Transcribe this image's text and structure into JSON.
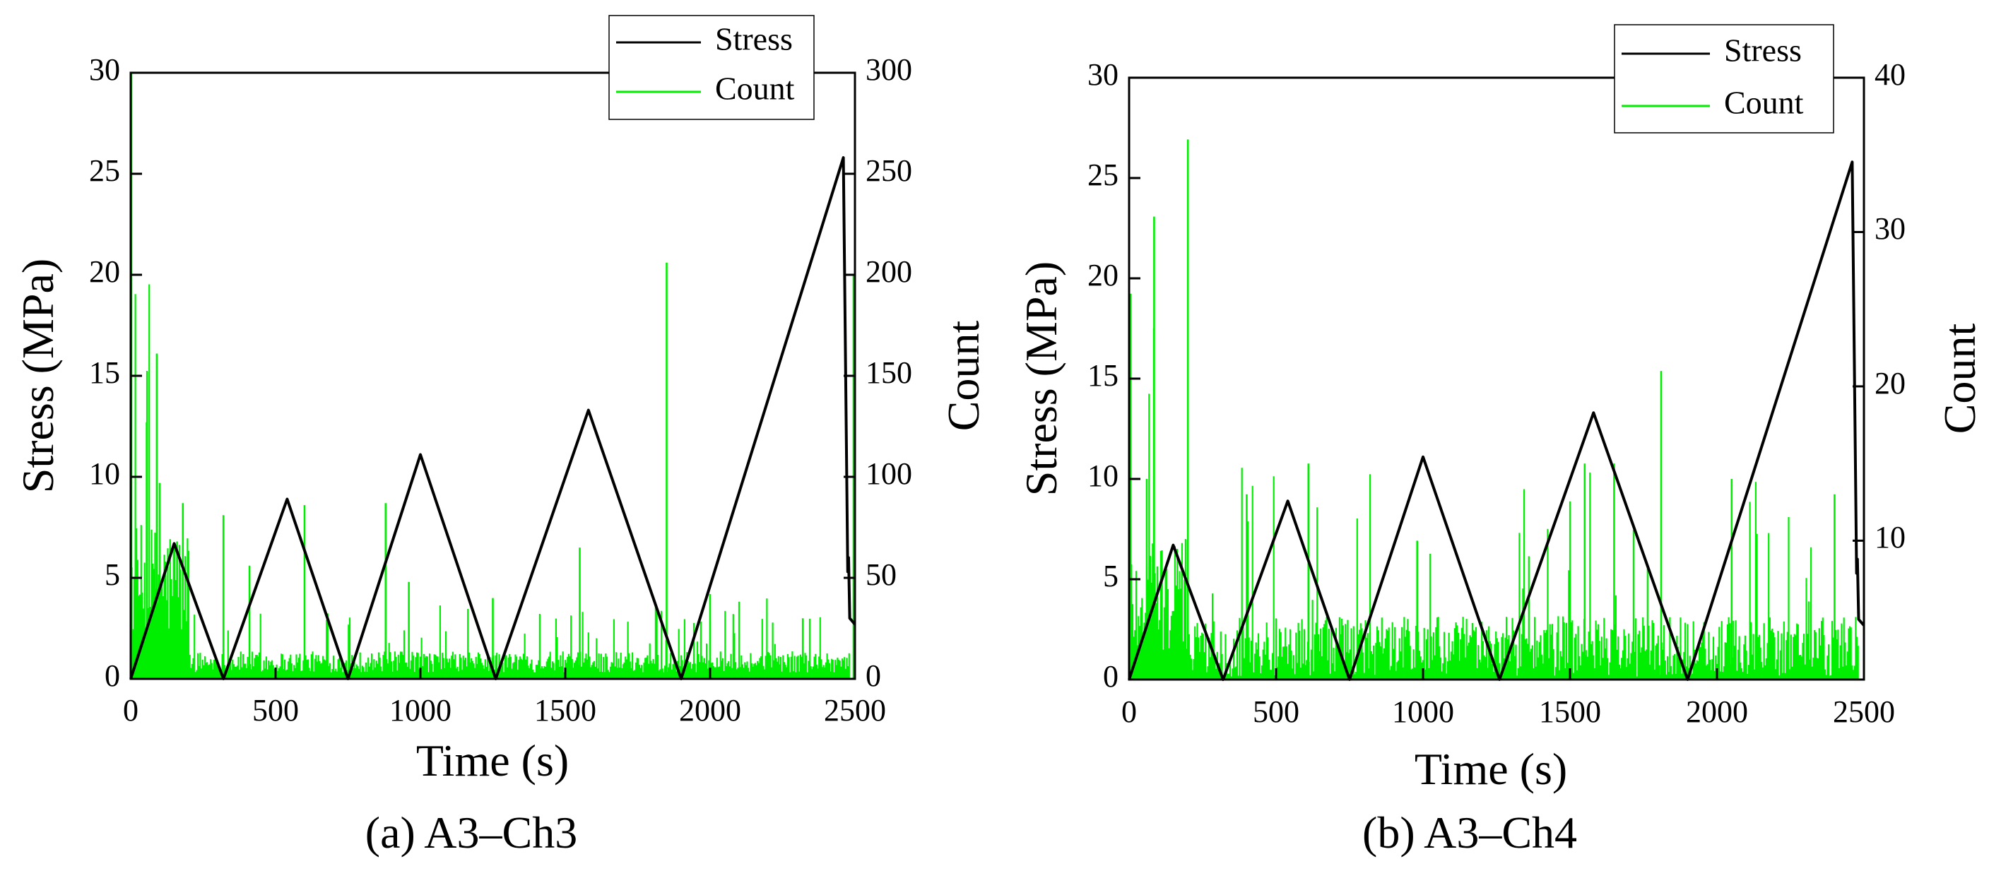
{
  "chart_data": [
    {
      "id": "a",
      "type": "line",
      "caption": "(a) A3–Ch3",
      "xlabel": "Time (s)",
      "ylabel": "Stress (MPa)",
      "y2label": "Count",
      "xlim": [
        0,
        2500
      ],
      "ylim": [
        0,
        30
      ],
      "y2lim": [
        0,
        300
      ],
      "xticks": [
        "0",
        "500",
        "1000",
        "1500",
        "2000",
        "2500"
      ],
      "yticks": [
        "0",
        "5",
        "10",
        "15",
        "20",
        "25",
        "30"
      ],
      "y2ticks": [
        "0",
        "50",
        "100",
        "150",
        "200",
        "250",
        "300"
      ],
      "legend": {
        "position": "top-right",
        "entries": [
          "Stress",
          "Count"
        ]
      },
      "colors": {
        "stress": "#000000",
        "count": "#00ee00"
      },
      "series": [
        {
          "name": "Stress",
          "axis": "left",
          "x": [
            0,
            150,
            320,
            540,
            750,
            1000,
            1260,
            1580,
            1900,
            2460,
            2475,
            2478,
            2482,
            2500
          ],
          "y": [
            0,
            6.7,
            0,
            8.9,
            0,
            11.1,
            0,
            13.3,
            0,
            25.8,
            5.3,
            6.0,
            3.0,
            2.7
          ]
        },
        {
          "name": "Count",
          "axis": "right",
          "peaks": [
            {
              "x": 2,
              "y": 300
            },
            {
              "x": 55,
              "y": 127
            },
            {
              "x": 90,
              "y": 161
            },
            {
              "x": 100,
              "y": 97
            },
            {
              "x": 160,
              "y": 68
            },
            {
              "x": 180,
              "y": 87
            },
            {
              "x": 320,
              "y": 81
            },
            {
              "x": 410,
              "y": 56
            },
            {
              "x": 600,
              "y": 86
            },
            {
              "x": 880,
              "y": 87
            },
            {
              "x": 960,
              "y": 48
            },
            {
              "x": 1250,
              "y": 40
            },
            {
              "x": 1550,
              "y": 65
            },
            {
              "x": 1850,
              "y": 206
            },
            {
              "x": 2000,
              "y": 42
            },
            {
              "x": 2320,
              "y": 30
            },
            {
              "x": 2495,
              "y": 200
            }
          ],
          "baseline_segments": [
            {
              "x": [
                0,
                200
              ],
              "y": 45
            },
            {
              "x": [
                200,
                2480
              ],
              "y": 8
            }
          ]
        }
      ]
    },
    {
      "id": "b",
      "type": "line",
      "caption": "(b) A3–Ch4",
      "xlabel": "Time (s)",
      "ylabel": "Stress (MPa)",
      "y2label": "Count",
      "xlim": [
        0,
        2500
      ],
      "ylim": [
        0,
        30
      ],
      "y2lim": [
        1,
        40
      ],
      "xticks": [
        "0",
        "500",
        "1000",
        "1500",
        "2000",
        "2500"
      ],
      "yticks": [
        "0",
        "5",
        "10",
        "15",
        "20",
        "25",
        "30"
      ],
      "y2ticks": [
        "10",
        "20",
        "30",
        "40"
      ],
      "legend": {
        "position": "top-right",
        "entries": [
          "Stress",
          "Count"
        ]
      },
      "colors": {
        "stress": "#000000",
        "count": "#00ee00"
      },
      "series": [
        {
          "name": "Stress",
          "axis": "left",
          "x": [
            0,
            150,
            320,
            540,
            750,
            1000,
            1260,
            1580,
            1900,
            2460,
            2475,
            2478,
            2482,
            2500
          ],
          "y": [
            0,
            6.7,
            0,
            8.9,
            0,
            11.1,
            0,
            13.3,
            0,
            25.8,
            5.3,
            6.0,
            3.0,
            2.7
          ]
        },
        {
          "name": "Count",
          "axis": "right",
          "peaks": [
            {
              "x": 5,
              "y": 26
            },
            {
              "x": 60,
              "y": 14
            },
            {
              "x": 85,
              "y": 31
            },
            {
              "x": 200,
              "y": 36
            },
            {
              "x": 400,
              "y": 13
            },
            {
              "x": 610,
              "y": 15
            },
            {
              "x": 980,
              "y": 10
            },
            {
              "x": 1550,
              "y": 15
            },
            {
              "x": 1650,
              "y": 15
            },
            {
              "x": 1810,
              "y": 21
            },
            {
              "x": 2050,
              "y": 14
            },
            {
              "x": 2400,
              "y": 13
            }
          ],
          "baseline_segments": [
            {
              "x": [
                0,
                200
              ],
              "y": 6
            },
            {
              "x": [
                200,
                2480
              ],
              "y": 3
            }
          ]
        }
      ]
    }
  ]
}
